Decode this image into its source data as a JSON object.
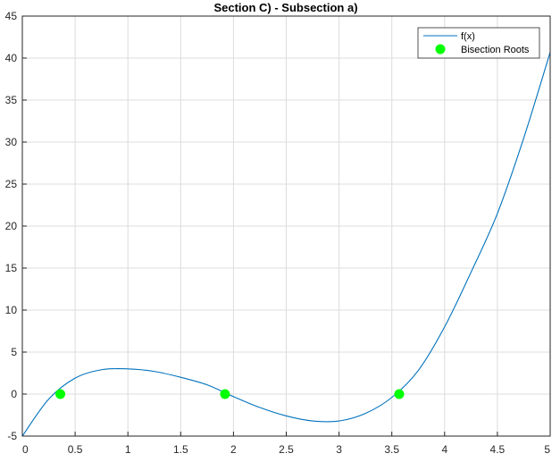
{
  "chart_data": {
    "type": "line",
    "title": "Section C) - Subsection a)",
    "xlabel": "",
    "ylabel": "",
    "xlim": [
      0,
      5
    ],
    "ylim": [
      -5,
      45
    ],
    "xticks": [
      0,
      0.5,
      1,
      1.5,
      2,
      2.5,
      3,
      3.5,
      4,
      4.5,
      5
    ],
    "xtick_labels": [
      "0",
      "0.5",
      "1",
      "1.5",
      "2",
      "2.5",
      "3",
      "3.5",
      "4",
      "4.5",
      "5"
    ],
    "yticks": [
      -5,
      0,
      5,
      10,
      15,
      20,
      25,
      30,
      35,
      40,
      45
    ],
    "ytick_labels": [
      "-5",
      "0",
      "5",
      "10",
      "15",
      "20",
      "25",
      "30",
      "35",
      "40",
      "45"
    ],
    "grid": true,
    "legend_position": "top-right",
    "series": [
      {
        "name": "f(x)",
        "kind": "line",
        "color": "#0072BD",
        "x": [
          0,
          0.25,
          0.5,
          0.75,
          1,
          1.25,
          1.5,
          1.75,
          2,
          2.25,
          2.5,
          2.75,
          3,
          3.25,
          3.5,
          3.75,
          4,
          4.25,
          4.5,
          4.75,
          5
        ],
        "y": [
          -5,
          -0.6,
          1.9,
          2.9,
          3.0,
          2.7,
          2.0,
          1.1,
          -0.3,
          -1.6,
          -2.6,
          -3.2,
          -3.2,
          -2.3,
          -0.4,
          2.8,
          8.0,
          14.5,
          21.5,
          30.5,
          40.7
        ]
      },
      {
        "name": "Bisection Roots",
        "kind": "markers",
        "color": "#00FF00",
        "x": [
          0.36,
          1.92,
          3.57
        ],
        "y": [
          0,
          0,
          0
        ]
      }
    ]
  }
}
